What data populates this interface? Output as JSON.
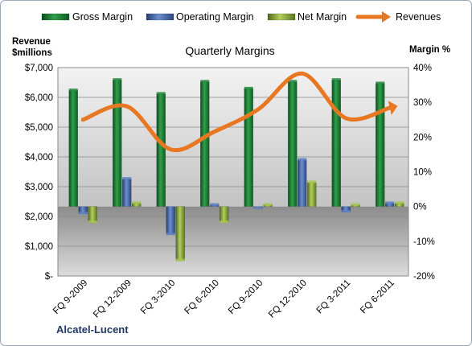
{
  "chart_data": {
    "type": "bar",
    "title": "Quarterly Margins",
    "categories": [
      "FQ 9-2009",
      "FQ 12-2009",
      "FQ 3-2010",
      "FQ 6-2010",
      "FQ 9-2010",
      "FQ 12-2010",
      "FQ 3-2011",
      "FQ 6-2011"
    ],
    "series": [
      {
        "name": "Gross Margin",
        "axis": "right",
        "values": [
          33.5,
          36.5,
          32.5,
          36.0,
          34.0,
          36.0,
          36.5,
          35.5
        ],
        "color": "#1e8a3c"
      },
      {
        "name": "Operating Margin",
        "axis": "right",
        "values": [
          -2.0,
          8.0,
          -8.0,
          0.5,
          -0.5,
          13.5,
          -1.5,
          1.0
        ],
        "color": "#4a6fb0"
      },
      {
        "name": "Net Margin",
        "axis": "right",
        "values": [
          -4.5,
          1.0,
          -15.5,
          -4.5,
          0.5,
          7.0,
          0.5,
          1.0
        ],
        "color": "#8fae3c"
      },
      {
        "name": "Revenues",
        "type": "line",
        "axis": "left",
        "values": [
          5250,
          5700,
          4250,
          4850,
          5600,
          6800,
          5300,
          5650
        ],
        "color": "#e87722"
      }
    ],
    "y_left": {
      "title": "Revenue $millions",
      "ticks": [
        "$-",
        "$1,000",
        "$2,000",
        "$3,000",
        "$4,000",
        "$5,000",
        "$6,000",
        "$7,000"
      ],
      "range": [
        0,
        7000
      ]
    },
    "y_right": {
      "title": "Margin %",
      "ticks": [
        "-20%",
        "-10%",
        "0%",
        "10%",
        "20%",
        "30%",
        "40%"
      ],
      "range": [
        -20,
        40
      ]
    },
    "legend": [
      "Gross Margin",
      "Operating Margin",
      "Net Margin",
      "Revenues"
    ],
    "legend_position": "top",
    "grid": true,
    "footer": "Alcatel-Lucent"
  }
}
